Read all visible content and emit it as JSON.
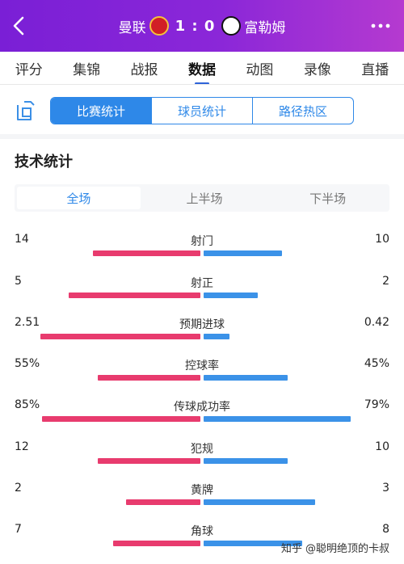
{
  "header": {
    "home_team": "曼联",
    "away_team": "富勒姆",
    "score": "1 : 0",
    "back_icon": "chevron-left-icon",
    "more_icon": "more-dots-icon",
    "home_badge_icon": "manchester-united-crest-icon",
    "away_badge_icon": "fulham-crest-icon",
    "gradient_colors": [
      "#7a1fd6",
      "#b53ad0"
    ]
  },
  "nav_tabs": [
    {
      "label": "评分",
      "active": false
    },
    {
      "label": "集锦",
      "active": false
    },
    {
      "label": "战报",
      "active": false
    },
    {
      "label": "数据",
      "active": true
    },
    {
      "label": "动图",
      "active": false
    },
    {
      "label": "录像",
      "active": false
    },
    {
      "label": "直播",
      "active": false
    }
  ],
  "share_icon": "share-card-icon",
  "segment_tabs": [
    {
      "label": "比赛统计",
      "active": true
    },
    {
      "label": "球员统计",
      "active": false
    },
    {
      "label": "路径热区",
      "active": false
    }
  ],
  "section_title": "技术统计",
  "period_tabs": [
    {
      "label": "全场",
      "active": true
    },
    {
      "label": "上半场",
      "active": false
    },
    {
      "label": "下半场",
      "active": false
    }
  ],
  "colors": {
    "home": "#e83b6e",
    "away": "#3b92e8",
    "accent": "#2e88e8"
  },
  "stats": [
    {
      "name": "射门",
      "home": "14",
      "away": "10",
      "home_frac": 0.58,
      "away_frac": 0.42
    },
    {
      "name": "射正",
      "home": "5",
      "away": "2",
      "home_frac": 0.71,
      "away_frac": 0.29
    },
    {
      "name": "预期进球",
      "home": "2.51",
      "away": "0.42",
      "home_frac": 0.86,
      "away_frac": 0.14
    },
    {
      "name": "控球率",
      "home": "55%",
      "away": "45%",
      "home_frac": 0.55,
      "away_frac": 0.45
    },
    {
      "name": "传球成功率",
      "home": "85%",
      "away": "79%",
      "home_frac": 0.85,
      "away_frac": 0.79
    },
    {
      "name": "犯规",
      "home": "12",
      "away": "10",
      "home_frac": 0.55,
      "away_frac": 0.45
    },
    {
      "name": "黄牌",
      "home": "2",
      "away": "3",
      "home_frac": 0.4,
      "away_frac": 0.6
    },
    {
      "name": "角球",
      "home": "7",
      "away": "8",
      "home_frac": 0.47,
      "away_frac": 0.53
    }
  ],
  "watermark": "知乎 @聪明绝顶的卡叔"
}
